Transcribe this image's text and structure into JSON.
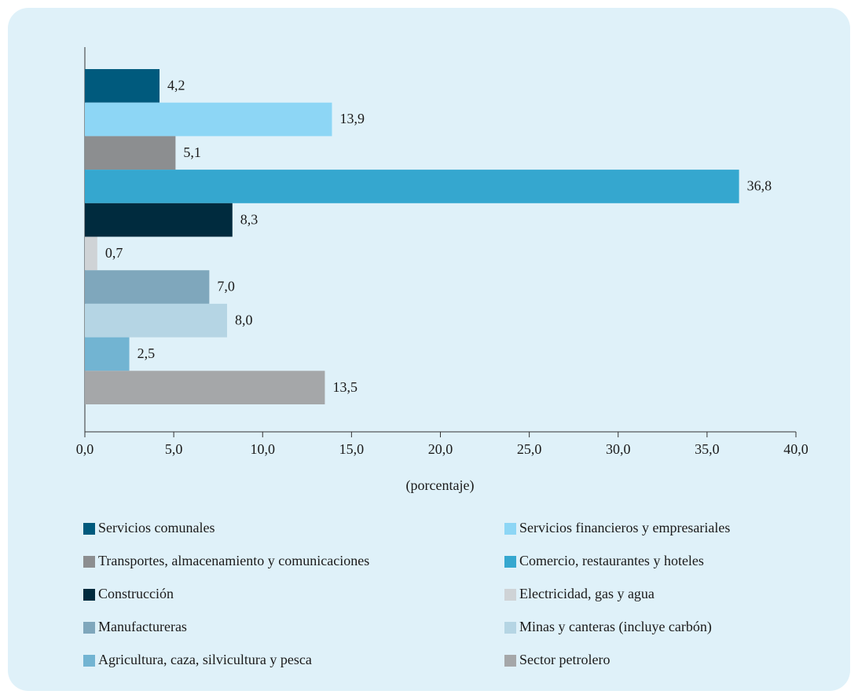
{
  "chart_data": {
    "type": "bar",
    "orientation": "horizontal",
    "xlabel": "(porcentaje)",
    "xlim": [
      0,
      40
    ],
    "xticks": [
      {
        "value": 0,
        "label": "0,0"
      },
      {
        "value": 5,
        "label": "5,0"
      },
      {
        "value": 10,
        "label": "10,0"
      },
      {
        "value": 15,
        "label": "15,0"
      },
      {
        "value": 20,
        "label": "20,0"
      },
      {
        "value": 25,
        "label": "25,0"
      },
      {
        "value": 30,
        "label": "30,0"
      },
      {
        "value": 35,
        "label": "35,0"
      },
      {
        "value": 40,
        "label": "40,0"
      }
    ],
    "series": [
      {
        "name": "Servicios comunales",
        "color": "#005a7d",
        "values": [
          4.2
        ],
        "value_labels": [
          "4,2"
        ]
      },
      {
        "name": "Servicios financieros y empresariales",
        "color": "#8dd6f5",
        "values": [
          13.9
        ],
        "value_labels": [
          "13,9"
        ]
      },
      {
        "name": "Transportes, almacenamiento y comunicaciones",
        "color": "#8c8e90",
        "values": [
          5.1
        ],
        "value_labels": [
          "5,1"
        ]
      },
      {
        "name": "Comercio, restaurantes y hoteles",
        "color": "#35a7cf",
        "values": [
          36.8
        ],
        "value_labels": [
          "36,8"
        ]
      },
      {
        "name": "Construcción",
        "color": "#002b3e",
        "values": [
          8.3
        ],
        "value_labels": [
          "8,3"
        ]
      },
      {
        "name": "Electricidad, gas y agua",
        "color": "#cfd3d6",
        "values": [
          0.7
        ],
        "value_labels": [
          "0,7"
        ]
      },
      {
        "name": "Manufactureras",
        "color": "#7fa7bc",
        "values": [
          7.0
        ],
        "value_labels": [
          "7,0"
        ]
      },
      {
        "name": "Minas y canteras (incluye carbón)",
        "color": "#b5d5e4",
        "values": [
          8.0
        ],
        "value_labels": [
          "8,0"
        ]
      },
      {
        "name": "Agricultura, caza, silvicultura y pesca",
        "color": "#72b4d2",
        "values": [
          2.5
        ],
        "value_labels": [
          "2,5"
        ]
      },
      {
        "name": "Sector petrolero",
        "color": "#a5a7a9",
        "values": [
          13.5
        ],
        "value_labels": [
          "13,5"
        ]
      }
    ]
  }
}
